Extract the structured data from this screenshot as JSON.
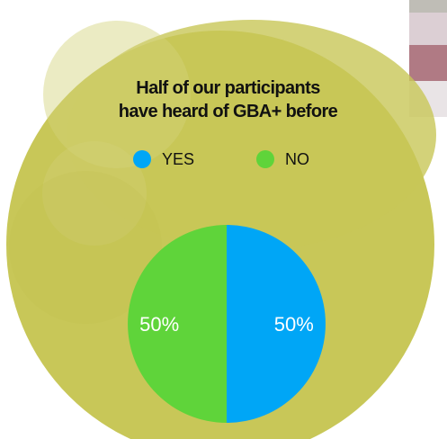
{
  "colors": {
    "background_blob": "#c8c758",
    "blob_highlight": "#d3d27a",
    "yes": "#00a6f6",
    "no": "#5fd43a",
    "swatch_1": "#bfbdb6",
    "swatch_2": "#dccfd4",
    "swatch_3": "#b07a84",
    "swatch_4": "#e9e4e6"
  },
  "chart_data": {
    "type": "pie",
    "title": "Half of our participants have heard of GBA+ before",
    "title_lines": [
      "Half of our participants",
      "have heard of GBA+ before"
    ],
    "legend_position": "top",
    "labels": [
      "YES",
      "NO"
    ],
    "values": [
      50,
      50
    ],
    "data_labels": [
      "50%",
      "50%"
    ],
    "colors": [
      "#00a6f6",
      "#5fd43a"
    ]
  }
}
